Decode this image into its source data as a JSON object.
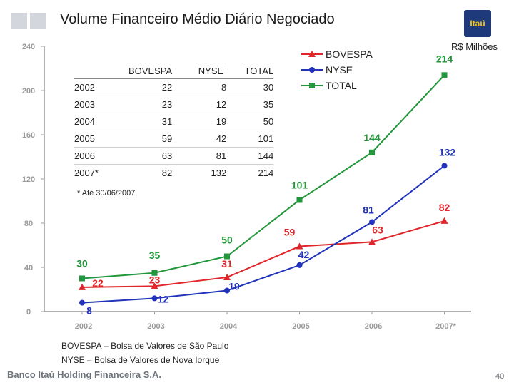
{
  "header": {
    "title": "Volume Financeiro Médio Diário Negociado",
    "logo_text": "Itaú",
    "unit": "R$ Milhões"
  },
  "table": {
    "headers": [
      "",
      "BOVESPA",
      "NYSE",
      "TOTAL"
    ],
    "rows": [
      [
        "2002",
        "22",
        "8",
        "30"
      ],
      [
        "2003",
        "23",
        "12",
        "35"
      ],
      [
        "2004",
        "31",
        "19",
        "50"
      ],
      [
        "2005",
        "59",
        "42",
        "101"
      ],
      [
        "2006",
        "63",
        "81",
        "144"
      ],
      [
        "2007*",
        "82",
        "132",
        "214"
      ]
    ],
    "note": "* Até 30/06/2007"
  },
  "footnotes": {
    "bovespa": "BOVESPA – Bolsa de Valores de São Paulo",
    "nyse": "NYSE – Bolsa de Valores de Nova Iorque"
  },
  "footer": {
    "company": "Banco Itaú Holding Financeira S.A.",
    "page": "40"
  },
  "chart_data": {
    "type": "line",
    "title": "Volume Financeiro Médio Diário Negociado",
    "ylabel": "R$ Milhões",
    "xlabel": "",
    "categories": [
      "2002",
      "2003",
      "2004",
      "2005",
      "2006",
      "2007*"
    ],
    "ylim": [
      0,
      240
    ],
    "yticks": [
      0,
      40,
      80,
      120,
      160,
      200,
      240
    ],
    "ytick_labels": [
      "0",
      "40",
      "80",
      "120",
      "160",
      "200",
      "240"
    ],
    "series": [
      {
        "name": "BOVESPA",
        "color": "#e0262a",
        "marker": "triangle",
        "values": [
          22,
          23,
          31,
          59,
          63,
          82
        ]
      },
      {
        "name": "NYSE",
        "color": "#2233bb",
        "marker": "circle",
        "values": [
          8,
          12,
          19,
          42,
          81,
          132
        ]
      },
      {
        "name": "TOTAL",
        "color": "#22963a",
        "marker": "square",
        "values": [
          30,
          35,
          50,
          101,
          144,
          214
        ]
      }
    ],
    "legend": "top-right"
  }
}
